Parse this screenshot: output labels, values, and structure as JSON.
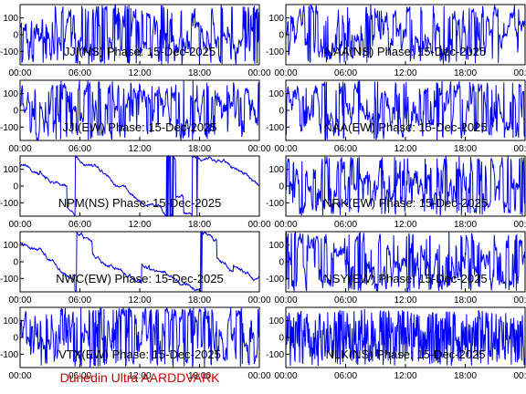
{
  "colors": {
    "trace": "#0000ff",
    "axis": "#000000",
    "footer": "#cc0000",
    "background": "#ffffff"
  },
  "footer": "Dunedin Ultra AARDDVARK",
  "chart_data": [
    {
      "type": "line",
      "title": "JJI(NS) Phase: 15-Dec-2025",
      "x_ticks": [
        "00:00",
        "06:00",
        "12:00",
        "18:00",
        "00:00"
      ],
      "y_ticks": [
        "100",
        "0",
        "-100"
      ],
      "ylim": [
        -180,
        180
      ],
      "xlim_hours": [
        0,
        24
      ],
      "trace_shape": "noisy",
      "grid": false
    },
    {
      "type": "line",
      "title": "NAA(NS) Phase: 15-Dec-2025",
      "x_ticks": [
        "00:00",
        "06:00",
        "12:00",
        "18:00",
        "00:00"
      ],
      "y_ticks": [
        "100",
        "0",
        "-100"
      ],
      "ylim": [
        -180,
        180
      ],
      "xlim_hours": [
        0,
        24
      ],
      "trace_shape": "noisy",
      "grid": false
    },
    {
      "type": "line",
      "title": "JJI(EW) Phase: 15-Dec-2025",
      "x_ticks": [
        "00:00",
        "06:00",
        "12:00",
        "18:00",
        "00:00"
      ],
      "y_ticks": [
        "100",
        "0",
        "-100"
      ],
      "ylim": [
        -180,
        180
      ],
      "xlim_hours": [
        0,
        24
      ],
      "trace_shape": "noisy",
      "grid": false
    },
    {
      "type": "line",
      "title": "NAA(EW) Phase: 15-Dec-2025",
      "x_ticks": [
        "00:00",
        "06:00",
        "12:00",
        "18:00",
        "00:00"
      ],
      "y_ticks": [
        "100",
        "0",
        "-100"
      ],
      "ylim": [
        -180,
        180
      ],
      "xlim_hours": [
        0,
        24
      ],
      "trace_shape": "noisy",
      "grid": false
    },
    {
      "type": "line",
      "title": "NPM(NS) Phase: 15-Dec-2025",
      "x_ticks": [
        "00:00",
        "06:00",
        "12:00",
        "18:00",
        "00:00"
      ],
      "y_ticks": [
        "100",
        "0",
        "-100"
      ],
      "ylim": [
        -180,
        180
      ],
      "xlim_hours": [
        0,
        24
      ],
      "trace_shape": "drift",
      "grid": false
    },
    {
      "type": "line",
      "title": "NRK(EW) Phase: 15-Dec-2025",
      "x_ticks": [
        "00:00",
        "06:00",
        "12:00",
        "18:00",
        "00:00"
      ],
      "y_ticks": [
        "100",
        "0",
        "-100"
      ],
      "ylim": [
        -180,
        180
      ],
      "xlim_hours": [
        0,
        24
      ],
      "trace_shape": "noisy",
      "grid": false
    },
    {
      "type": "line",
      "title": "NWC(EW) Phase: 15-Dec-2025",
      "x_ticks": [
        "00:00",
        "06:00",
        "12:00",
        "18:00",
        "00:00"
      ],
      "y_ticks": [
        "100",
        "0",
        "-100"
      ],
      "ylim": [
        -180,
        180
      ],
      "xlim_hours": [
        0,
        24
      ],
      "trace_shape": "drift",
      "grid": false
    },
    {
      "type": "line",
      "title": "NSY(EW) Phase: 15-Dec-2025",
      "x_ticks": [
        "00:00",
        "06:00",
        "12:00",
        "18:00",
        "00:00"
      ],
      "y_ticks": [
        "100",
        "0",
        "-100"
      ],
      "ylim": [
        -180,
        180
      ],
      "xlim_hours": [
        0,
        24
      ],
      "trace_shape": "noisy",
      "grid": false
    },
    {
      "type": "line",
      "title": "VTX(EW) Phase: 15-Dec-2025",
      "x_ticks": [
        "00:00",
        "06:00",
        "12:00",
        "18:00",
        "00:00"
      ],
      "y_ticks": [
        "100",
        "0",
        "-100"
      ],
      "ylim": [
        -180,
        180
      ],
      "xlim_hours": [
        0,
        24
      ],
      "trace_shape": "noisy",
      "grid": false
    },
    {
      "type": "line",
      "title": "NLK(NS) Phase: 15-Dec-2025",
      "x_ticks": [
        "00:00",
        "06:00",
        "12:00",
        "18:00",
        "00:00"
      ],
      "y_ticks": [
        "100",
        "0",
        "-100"
      ],
      "ylim": [
        -180,
        180
      ],
      "xlim_hours": [
        0,
        24
      ],
      "trace_shape": "dense",
      "grid": false
    }
  ]
}
